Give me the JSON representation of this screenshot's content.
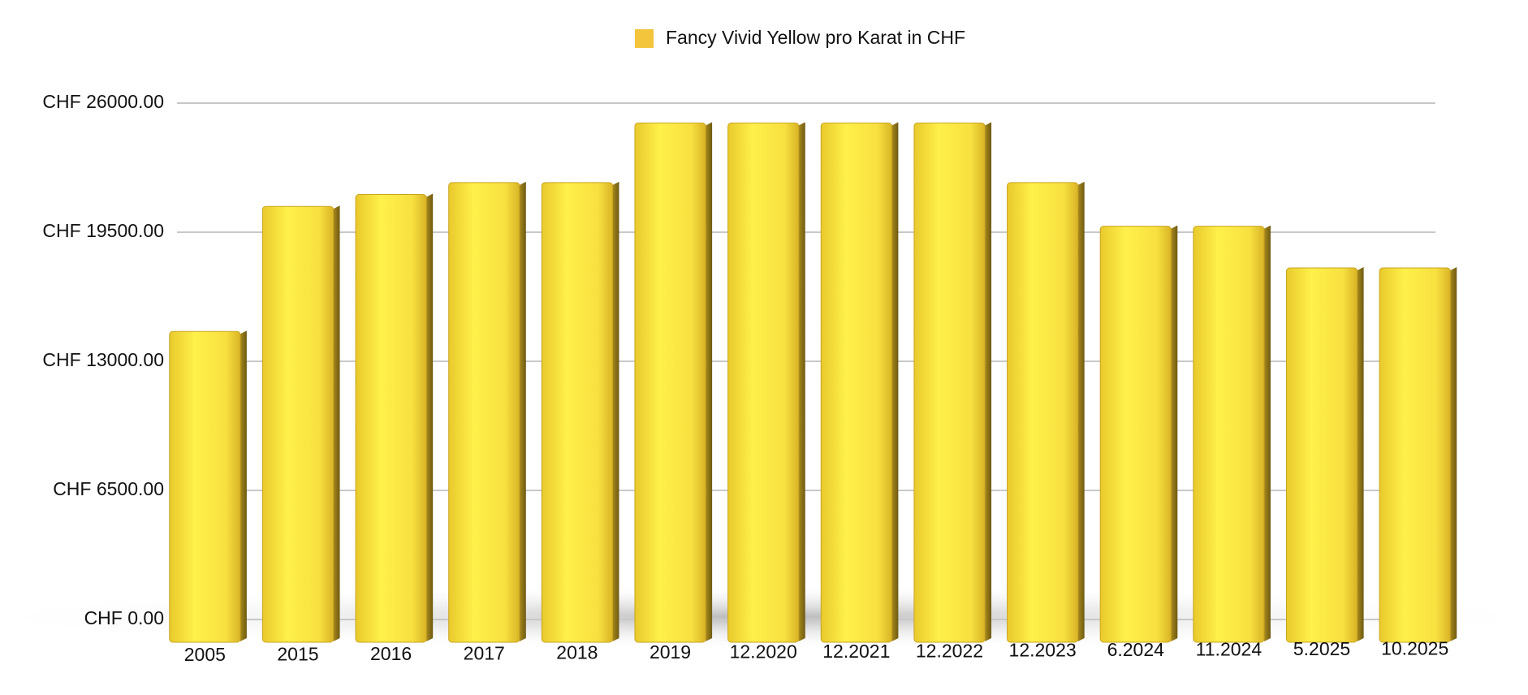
{
  "chart_data": {
    "type": "bar",
    "legend": "Fancy Vivid Yellow pro Karat in CHF",
    "categories": [
      "2005",
      "2015",
      "2016",
      "2017",
      "2018",
      "2019",
      "12.2020",
      "12.2021",
      "12.2022",
      "12.2023",
      "6.2024",
      "11.2024",
      "5.2025",
      "10.2025"
    ],
    "values": [
      14500,
      20800,
      21400,
      22000,
      22000,
      25000,
      25000,
      25000,
      25000,
      22000,
      19800,
      19800,
      17700,
      17700
    ],
    "color": "#f2c53d",
    "ylim": [
      0,
      26000
    ],
    "yticks": [
      {
        "value": 0,
        "label": "CHF 0.00"
      },
      {
        "value": 6500,
        "label": "CHF 6500.00"
      },
      {
        "value": 13000,
        "label": "CHF 13000.00"
      },
      {
        "value": 19500,
        "label": "CHF 19500.00"
      },
      {
        "value": 26000,
        "label": "CHF 26000.00"
      }
    ],
    "grid": true
  }
}
